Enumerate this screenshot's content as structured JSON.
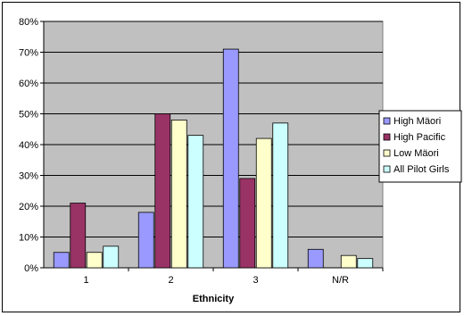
{
  "chart_data": {
    "type": "bar",
    "title": "",
    "xlabel": "Ethnicity",
    "ylabel": "",
    "categories": [
      "1",
      "2",
      "3",
      "N/R"
    ],
    "ylim": [
      0,
      0.8
    ],
    "y_ticks": [
      "0%",
      "10%",
      "20%",
      "30%",
      "40%",
      "50%",
      "60%",
      "70%",
      "80%"
    ],
    "grid": true,
    "legend_position": "right",
    "series": [
      {
        "name": "High Mäori",
        "color": "#9999FF",
        "values": [
          0.05,
          0.18,
          0.71,
          0.06
        ]
      },
      {
        "name": "High Pacific",
        "color": "#993366",
        "values": [
          0.21,
          0.5,
          0.29,
          0.0
        ]
      },
      {
        "name": "Low Mäori",
        "color": "#FFFFCC",
        "values": [
          0.05,
          0.48,
          0.42,
          0.04
        ]
      },
      {
        "name": "All Pilot Girls",
        "color": "#CCFFFF",
        "values": [
          0.07,
          0.43,
          0.47,
          0.03
        ]
      }
    ],
    "plot_background": "#C0C0C0"
  }
}
